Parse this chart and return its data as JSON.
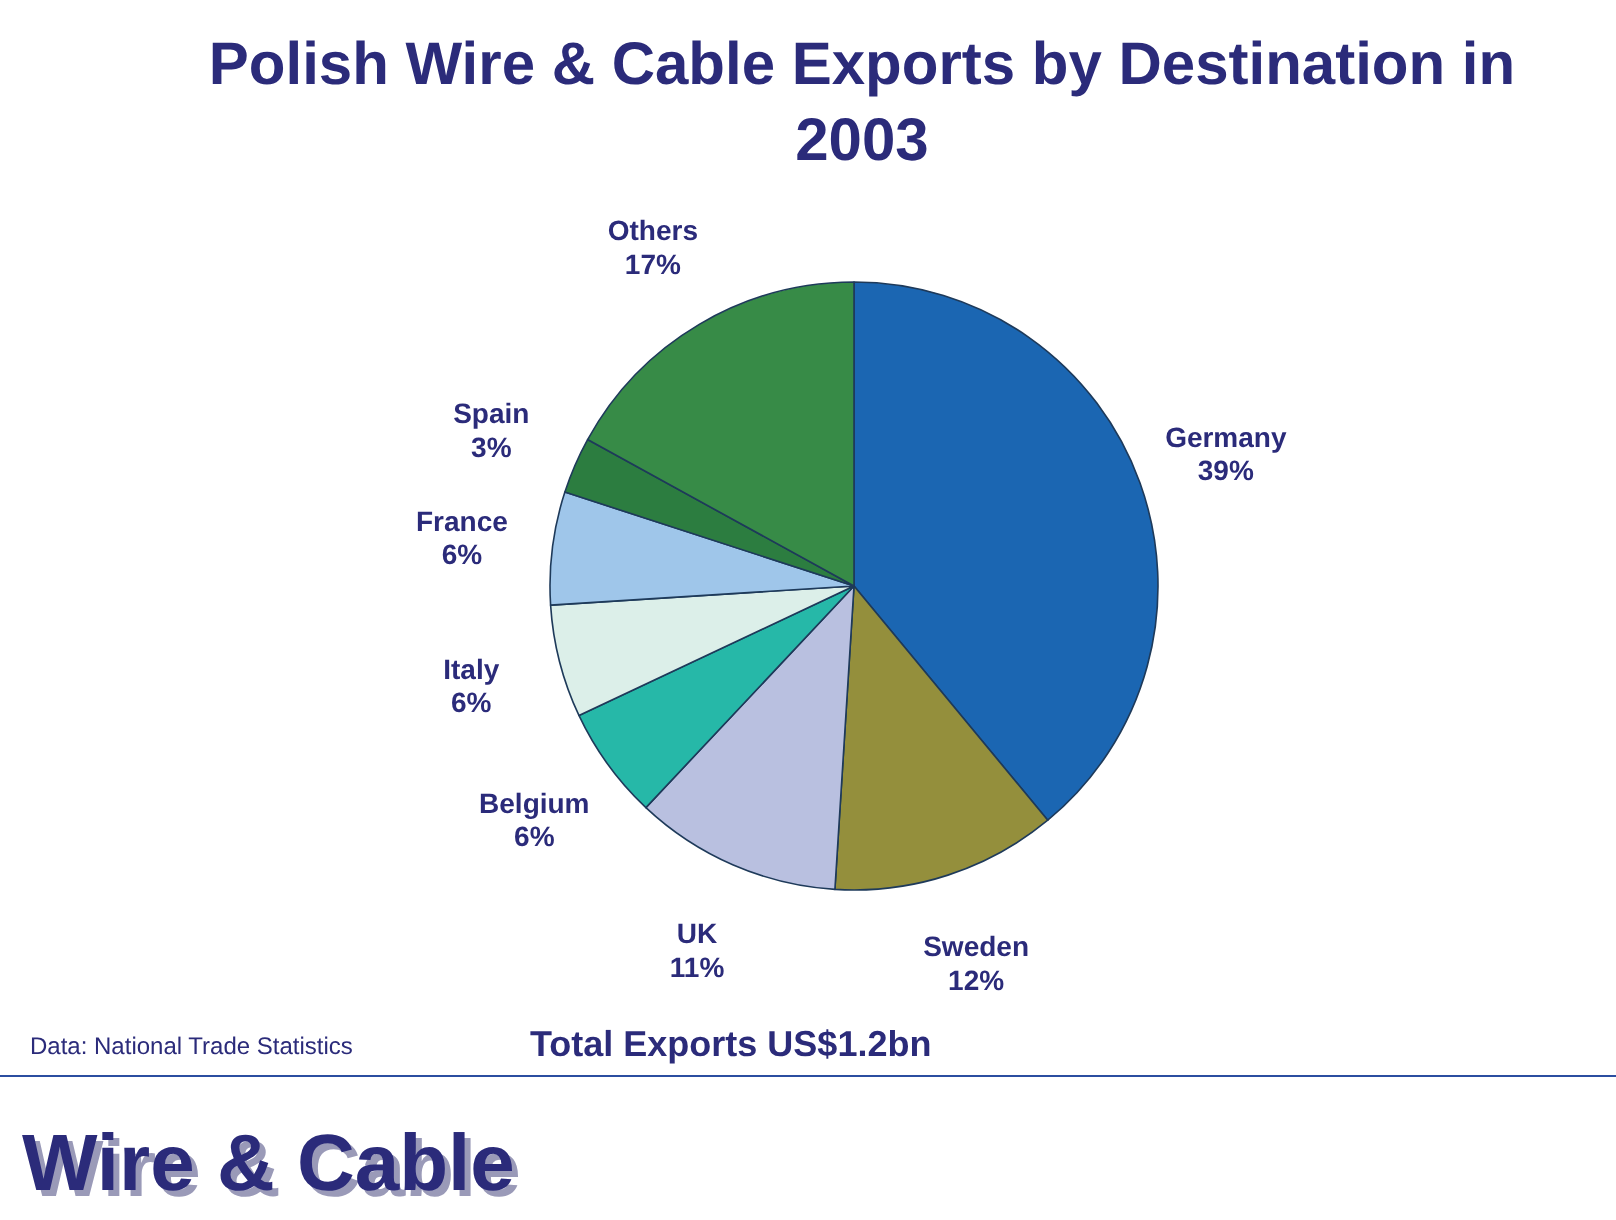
{
  "chart_data": {
    "type": "pie",
    "title": "Polish Wire & Cable Exports by Destination in 2003",
    "categories": [
      "Germany",
      "Sweden",
      "UK",
      "Belgium",
      "Italy",
      "France",
      "Spain",
      "Others"
    ],
    "values": [
      39,
      12,
      11,
      6,
      6,
      6,
      3,
      17
    ],
    "colors": [
      "#1b66b2",
      "#948f3c",
      "#b9c0e0",
      "#26b8a8",
      "#dcefe9",
      "#9fc6ea",
      "#2c7d40",
      "#378b47"
    ],
    "value_labels": [
      "39%",
      "12%",
      "11%",
      "6%",
      "6%",
      "6%",
      "3%",
      "17%"
    ],
    "annotations": [
      "Data: National Trade Statistics",
      "Total Exports US$1.2bn",
      "Wire & Cable"
    ]
  }
}
